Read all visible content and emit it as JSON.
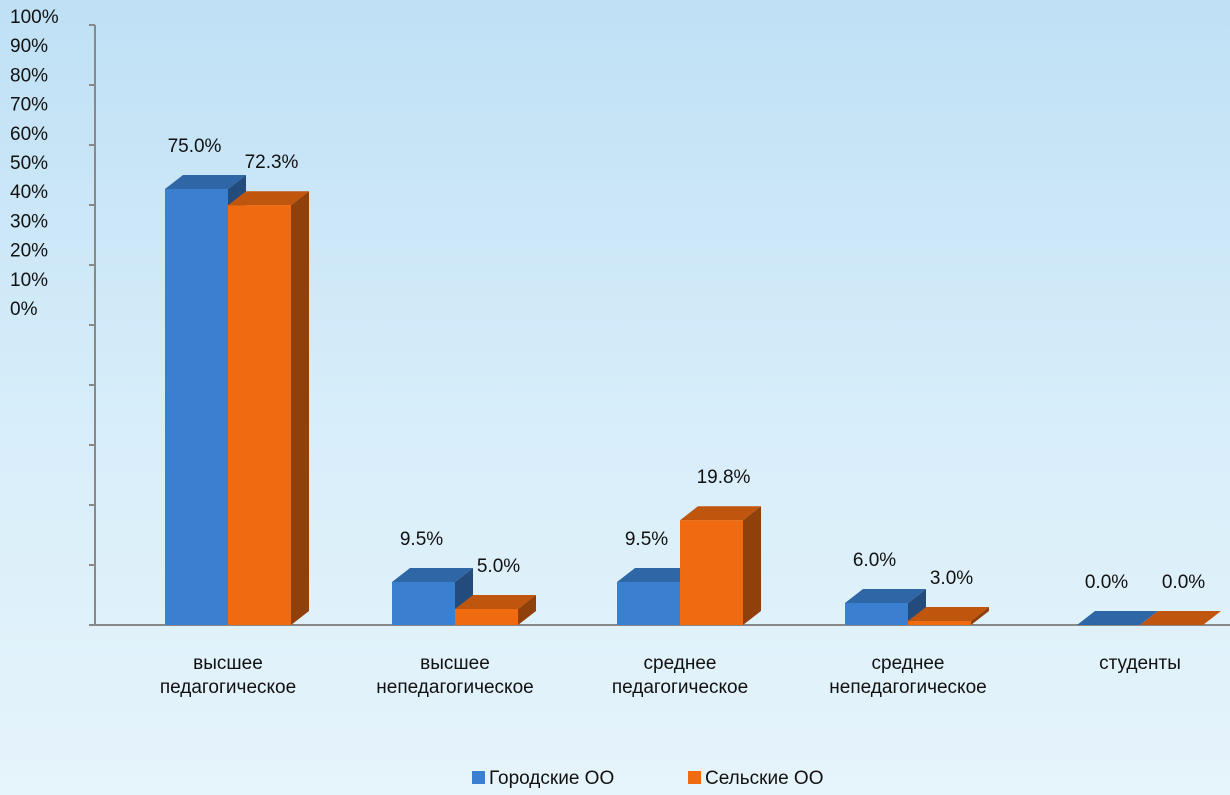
{
  "chart_data": {
    "type": "bar",
    "categories": [
      "высшее педагогическое",
      "высшее непедагогическое",
      "среднее педагогическое",
      "среднее непедагогическое",
      "студенты"
    ],
    "series": [
      {
        "name": "Городские ОО",
        "color": "#3b7fd0",
        "values": [
          75.0,
          9.5,
          9.5,
          6.0,
          0.0
        ],
        "value_labels": [
          "75.0%",
          "9.5%",
          "9.5%",
          "6.0%",
          "0.0%"
        ]
      },
      {
        "name": "Сельские ОО",
        "color": "#f06a10",
        "values": [
          72.3,
          5.0,
          19.8,
          3.0,
          0.0
        ],
        "value_labels": [
          "72.3%",
          "5.0%",
          "19.8%",
          "3.0%",
          "0.0%"
        ]
      }
    ],
    "ylim": [
      0,
      100
    ],
    "yticks": [
      {
        "value": 0,
        "label": "0%"
      },
      {
        "value": 10,
        "label": "10%"
      },
      {
        "value": 20,
        "label": "20%"
      },
      {
        "value": 30,
        "label": "30%"
      },
      {
        "value": 40,
        "label": "40%"
      },
      {
        "value": 50,
        "label": "50%"
      },
      {
        "value": 60,
        "label": "60%"
      },
      {
        "value": 70,
        "label": "70%"
      },
      {
        "value": 80,
        "label": "80%"
      },
      {
        "value": 90,
        "label": "90%"
      },
      {
        "value": 100,
        "label": "100%"
      }
    ],
    "legend": "bottom"
  }
}
